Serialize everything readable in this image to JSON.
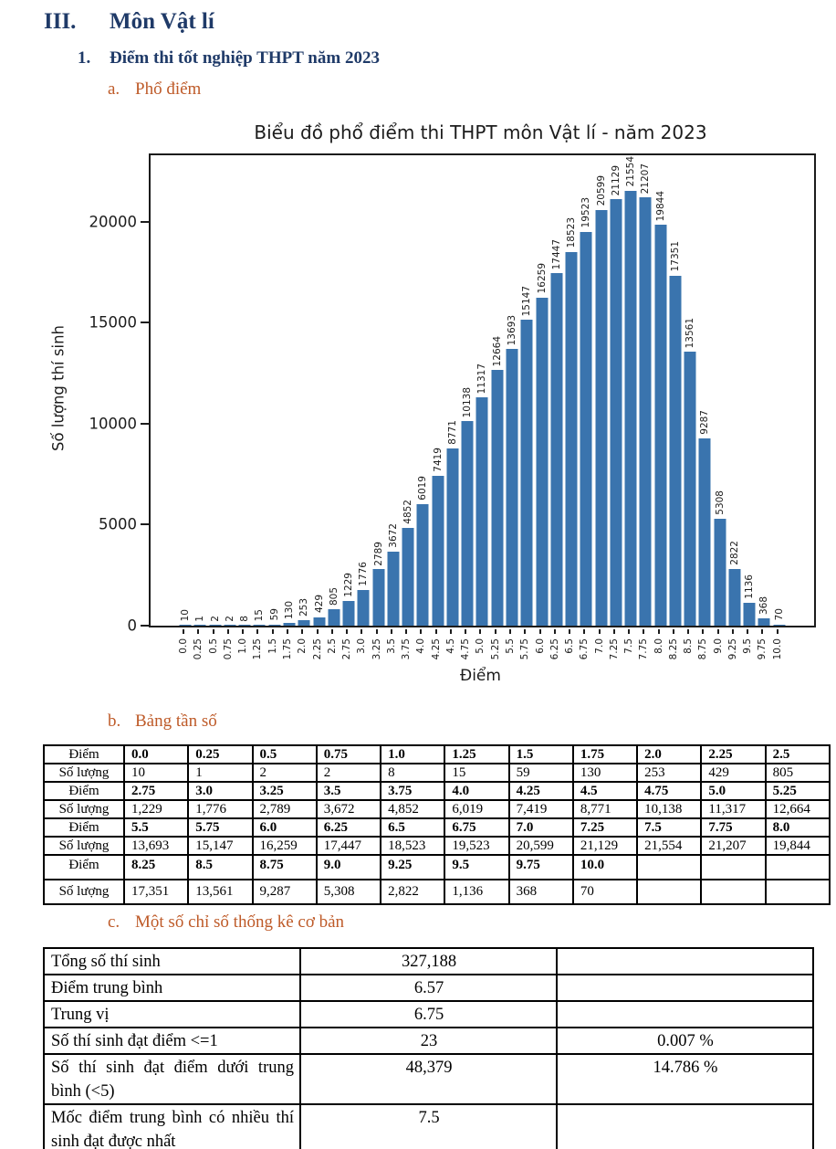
{
  "page": {
    "h1_num": "III.",
    "h1": "Môn Vật lí",
    "s1_num": "1.",
    "s1": "Điểm thi tốt nghiệp THPT năm 2023",
    "a_num": "a.",
    "a": "Phổ điểm",
    "b_num": "b.",
    "b": "Bảng tần số",
    "c_num": "c.",
    "c": "Một số chỉ số thống kê cơ bản"
  },
  "chart_data": {
    "type": "bar",
    "title": "Biểu đồ phổ điểm thi THPT môn Vật lí - năm 2023",
    "xlabel": "Điểm",
    "ylabel": "Số lượng thí sinh",
    "categories": [
      "0.0",
      "0.25",
      "0.5",
      "0.75",
      "1.0",
      "1.25",
      "1.5",
      "1.75",
      "2.0",
      "2.25",
      "2.5",
      "2.75",
      "3.0",
      "3.25",
      "3.5",
      "3.75",
      "4.0",
      "4.25",
      "4.5",
      "4.75",
      "5.0",
      "5.25",
      "5.5",
      "5.75",
      "6.0",
      "6.25",
      "6.5",
      "6.75",
      "7.0",
      "7.25",
      "7.5",
      "7.75",
      "8.0",
      "8.25",
      "8.5",
      "8.75",
      "9.0",
      "9.25",
      "9.5",
      "9.75",
      "10.0"
    ],
    "values": [
      10,
      1,
      2,
      2,
      8,
      15,
      59,
      130,
      253,
      429,
      805,
      1229,
      1776,
      2789,
      3672,
      4852,
      6019,
      7419,
      8771,
      10138,
      11317,
      12664,
      13693,
      15147,
      16259,
      17447,
      18523,
      19523,
      20599,
      21129,
      21554,
      21207,
      19844,
      17351,
      13561,
      9287,
      5308,
      2822,
      1136,
      368,
      70
    ],
    "yticks": [
      0,
      5000,
      10000,
      15000,
      20000
    ],
    "ylim": [
      0,
      23300
    ],
    "grid": false,
    "legend": "none",
    "bar_color": "#3A74AE"
  },
  "freq_table": {
    "label_diem": "Điểm",
    "label_soluong": "Số lượng",
    "groups": [
      {
        "diem": [
          "0.0",
          "0.25",
          "0.5",
          "0.75",
          "1.0",
          "1.25",
          "1.5",
          "1.75",
          "2.0",
          "2.25",
          "2.5"
        ],
        "soluong": [
          "10",
          "1",
          "2",
          "2",
          "8",
          "15",
          "59",
          "130",
          "253",
          "429",
          "805"
        ]
      },
      {
        "diem": [
          "2.75",
          "3.0",
          "3.25",
          "3.5",
          "3.75",
          "4.0",
          "4.25",
          "4.5",
          "4.75",
          "5.0",
          "5.25"
        ],
        "soluong": [
          "1,229",
          "1,776",
          "2,789",
          "3,672",
          "4,852",
          "6,019",
          "7,419",
          "8,771",
          "10,138",
          "11,317",
          "12,664"
        ]
      },
      {
        "diem": [
          "5.5",
          "5.75",
          "6.0",
          "6.25",
          "6.5",
          "6.75",
          "7.0",
          "7.25",
          "7.5",
          "7.75",
          "8.0"
        ],
        "soluong": [
          "13,693",
          "15,147",
          "16,259",
          "17,447",
          "18,523",
          "19,523",
          "20,599",
          "21,129",
          "21,554",
          "21,207",
          "19,844"
        ]
      },
      {
        "diem": [
          "8.25",
          "8.5",
          "8.75",
          "9.0",
          "9.25",
          "9.5",
          "9.75",
          "10.0",
          "",
          "",
          ""
        ],
        "soluong": [
          "17,351",
          "13,561",
          "9,287",
          "5,308",
          "2,822",
          "1,136",
          "368",
          "70",
          "",
          "",
          ""
        ]
      }
    ]
  },
  "stats_table": {
    "rows": [
      {
        "label": "Tổng số thí sinh",
        "value": "327,188",
        "percent": "",
        "tall": false
      },
      {
        "label": "Điểm trung bình",
        "value": "6.57",
        "percent": "",
        "tall": false
      },
      {
        "label": "Trung vị",
        "value": "6.75",
        "percent": "",
        "tall": false
      },
      {
        "label": "Số thí sinh đạt điểm <=1",
        "value": "23",
        "percent": "0.007 %",
        "tall": false
      },
      {
        "label": "Số thí sinh đạt điểm dưới trung bình (<5)",
        "value": "48,379",
        "percent": "14.786 %",
        "tall": true
      },
      {
        "label": "Mốc điểm trung bình có nhiều thí sinh đạt được nhất",
        "value": "7.5",
        "percent": "",
        "tall": true
      }
    ]
  }
}
